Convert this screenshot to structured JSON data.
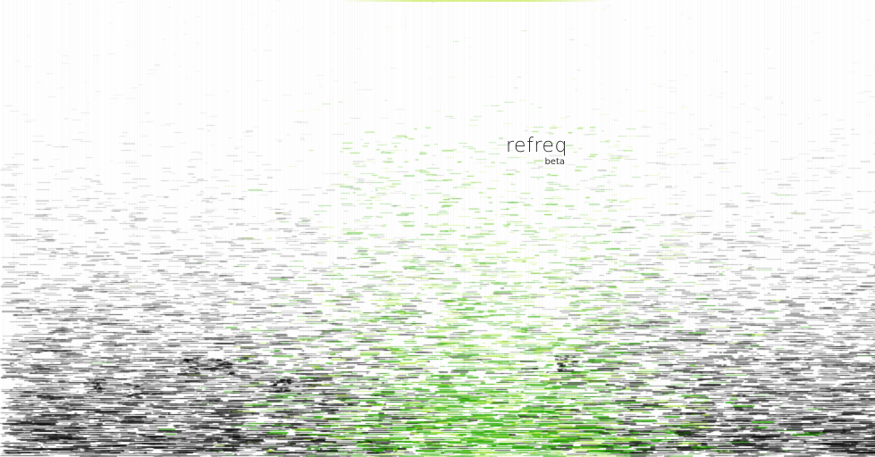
{
  "app": {
    "name": "refreq",
    "tag": "beta"
  },
  "background": {
    "base_color": "#ffffff",
    "ink_color": "#111111",
    "accent_color": "#55c800",
    "accent_light": "#c8ee40"
  }
}
